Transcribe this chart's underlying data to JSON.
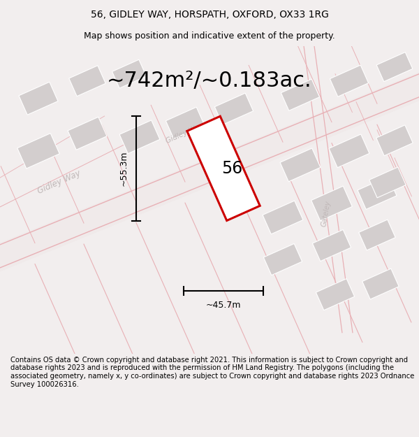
{
  "title": "56, GIDLEY WAY, HORSPATH, OXFORD, OX33 1RG",
  "subtitle": "Map shows position and indicative extent of the property.",
  "area_text": "~742m²/~0.183ac.",
  "width_label": "~45.7m",
  "height_label": "~55.3m",
  "number_label": "56",
  "footer_text": "Contains OS data © Crown copyright and database right 2021. This information is subject to Crown copyright and database rights 2023 and is reproduced with the permission of HM Land Registry. The polygons (including the associated geometry, namely x, y co-ordinates) are subject to Crown copyright and database rights 2023 Ordnance Survey 100026316.",
  "bg_color": "#f2eeee",
  "map_bg": "#f8f5f5",
  "road_color": "#e8b0b5",
  "building_color": "#d3cece",
  "plot_color": "#cc0000",
  "street_label_color": "#b0a8a8",
  "title_fontsize": 10,
  "subtitle_fontsize": 9,
  "area_fontsize": 22,
  "footer_fontsize": 7.2
}
